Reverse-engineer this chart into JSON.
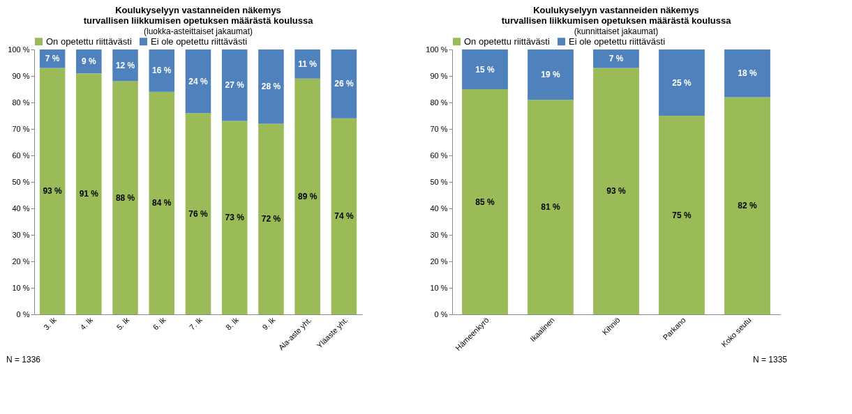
{
  "chart_data": [
    {
      "type": "bar",
      "stacked": true,
      "title": "Koulukyselyyn vastanneiden näkemys\nturvallisen liikkumisen opetuksen määrästä koulussa",
      "subtitle": "(luokka-asteittaiset jakaumat)",
      "categories": [
        "3. lk",
        "4. lk",
        "5. lk",
        "6. lk",
        "7. lk",
        "8. lk",
        "9. lk",
        "Ala-aste yht.",
        "Yläaste yht."
      ],
      "series": [
        {
          "name": "On opetettu riittävästi",
          "color": "#9bbb59",
          "values": [
            93,
            91,
            88,
            84,
            76,
            73,
            72,
            89,
            74
          ],
          "value_labels": [
            "93 %",
            "91 %",
            "88 %",
            "84 %",
            "76 %",
            "73 %",
            "72 %",
            "89 %",
            "74 %"
          ]
        },
        {
          "name": "Ei ole opetettu riittävästi",
          "color": "#4f81bd",
          "values": [
            7,
            9,
            12,
            16,
            24,
            27,
            28,
            11,
            26
          ],
          "value_labels": [
            "7 %",
            "9 %",
            "12 %",
            "16 %",
            "24 %",
            "27 %",
            "28 %",
            "11 %",
            "26 %"
          ]
        }
      ],
      "ylim": [
        0,
        100
      ],
      "yticks": [
        {
          "value": 0,
          "label": "0 %"
        },
        {
          "value": 10,
          "label": "10 %"
        },
        {
          "value": 20,
          "label": "20 %"
        },
        {
          "value": 30,
          "label": "30 %"
        },
        {
          "value": 40,
          "label": "40 %"
        },
        {
          "value": 50,
          "label": "50 %"
        },
        {
          "value": 60,
          "label": "60 %"
        },
        {
          "value": 70,
          "label": "70 %"
        },
        {
          "value": 80,
          "label": "80 %"
        },
        {
          "value": 90,
          "label": "90 %"
        },
        {
          "value": 100,
          "label": "100 %"
        }
      ],
      "legend": "top",
      "annotations": [
        "N = 1336"
      ]
    },
    {
      "type": "bar",
      "stacked": true,
      "title": "Koulukyselyyn vastanneiden näkemys\nturvallisen liikkumisen opetuksen määrästä koulussa",
      "subtitle": "(kunnittaiset jakaumat)",
      "categories": [
        "Hämeenkyrö",
        "Ikaalinen",
        "Kihniö",
        "Parkano",
        "Koko seutu"
      ],
      "series": [
        {
          "name": "On opetettu riittävästi",
          "color": "#9bbb59",
          "values": [
            85,
            81,
            93,
            75,
            82
          ],
          "value_labels": [
            "85 %",
            "81 %",
            "93 %",
            "75 %",
            "82 %"
          ]
        },
        {
          "name": "Ei ole opetettu riittävästi",
          "color": "#4f81bd",
          "values": [
            15,
            19,
            7,
            25,
            18
          ],
          "value_labels": [
            "15 %",
            "19 %",
            "7 %",
            "25 %",
            "18 %"
          ]
        }
      ],
      "ylim": [
        0,
        100
      ],
      "yticks": [
        {
          "value": 0,
          "label": "0 %"
        },
        {
          "value": 10,
          "label": "10 %"
        },
        {
          "value": 20,
          "label": "20 %"
        },
        {
          "value": 30,
          "label": "30 %"
        },
        {
          "value": 40,
          "label": "40 %"
        },
        {
          "value": 50,
          "label": "50 %"
        },
        {
          "value": 60,
          "label": "60 %"
        },
        {
          "value": 70,
          "label": "70 %"
        },
        {
          "value": 80,
          "label": "80 %"
        },
        {
          "value": 90,
          "label": "90 %"
        },
        {
          "value": 100,
          "label": "100 %"
        }
      ],
      "legend": "top",
      "annotations": [
        "N = 1335"
      ]
    }
  ]
}
